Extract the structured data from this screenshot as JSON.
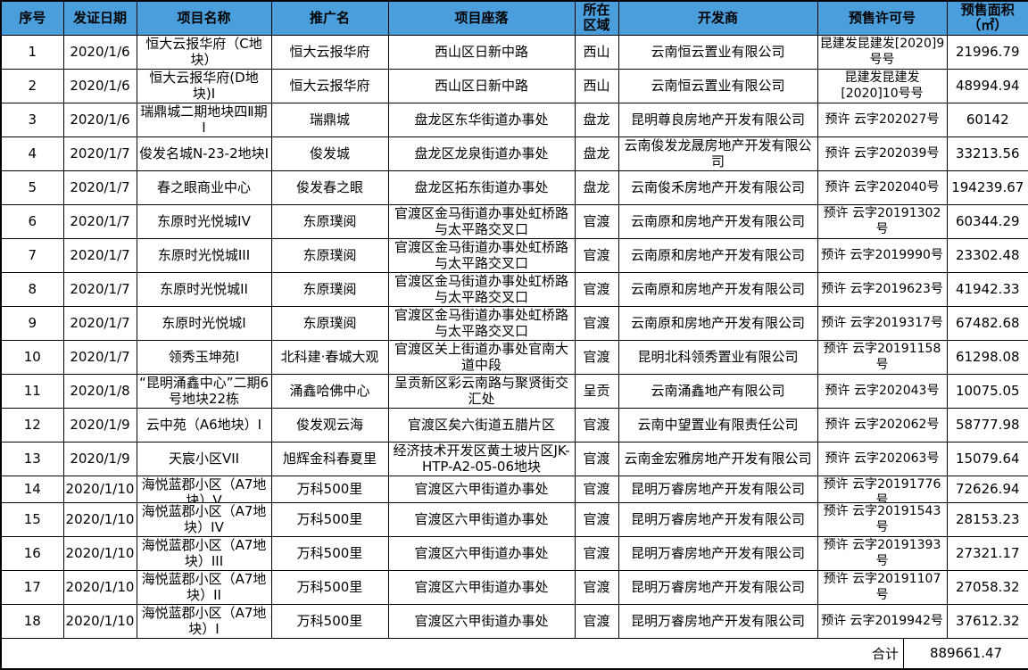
{
  "colors": {
    "header_bg": "#4A9EDB",
    "border": "#000000",
    "text": "#000000",
    "body_bg": "#FFFFFF"
  },
  "table": {
    "headers": [
      "序号",
      "发证日期",
      "项目名称",
      "推广名",
      "项目座落",
      "所在区域",
      "开发商",
      "预售许可号",
      "预售面积（㎡）"
    ],
    "rows": [
      [
        "1",
        "2020/1/6",
        "恒大云报华府（C地块）",
        "恒大云报华府",
        "西山区日新中路",
        "西山",
        "云南恒云置业有限公司",
        "昆建发昆建发[2020]9号号",
        "21996.79"
      ],
      [
        "2",
        "2020/1/6",
        "恒大云报华府(D地块)I",
        "恒大云报华府",
        "西山区日新中路",
        "西山",
        "云南恒云置业有限公司",
        "昆建发昆建发[2020]10号号",
        "48994.94"
      ],
      [
        "3",
        "2020/1/6",
        "瑞鼎城二期地块四Ⅱ期I",
        "瑞鼎城",
        "盘龙区东华街道办事处",
        "盘龙",
        "昆明尊良房地产开发有限公司",
        "预许 云字202027号",
        "60142"
      ],
      [
        "4",
        "2020/1/7",
        "俊发名城N-23-2地块I",
        "俊发城",
        "盘龙区龙泉街道办事处",
        "盘龙",
        "云南俊发龙晟房地产开发有限公司",
        "预许 云字202039号",
        "33213.56"
      ],
      [
        "5",
        "2020/1/7",
        "春之眼商业中心",
        "俊发春之眼",
        "盘龙区拓东街道办事处",
        "盘龙",
        "云南俊禾房地产开发有限公司",
        "预许 云字202040号",
        "194239.67"
      ],
      [
        "6",
        "2020/1/7",
        "东原时光悦城IV",
        "东原璞阅",
        "官渡区金马街道办事处虹桥路与太平路交叉口",
        "官渡",
        "云南原和房地产开发有限公司",
        "预许 云字20191302号",
        "60344.29"
      ],
      [
        "7",
        "2020/1/7",
        "东原时光悦城III",
        "东原璞阅",
        "官渡区金马街道办事处虹桥路与太平路交叉口",
        "官渡",
        "云南原和房地产开发有限公司",
        "预许 云字2019990号",
        "23302.48"
      ],
      [
        "8",
        "2020/1/7",
        "东原时光悦城II",
        "东原璞阅",
        "官渡区金马街道办事处虹桥路与太平路交叉口",
        "官渡",
        "云南原和房地产开发有限公司",
        "预许 云字2019623号",
        "41942.33"
      ],
      [
        "9",
        "2020/1/7",
        "东原时光悦城I",
        "东原璞阅",
        "官渡区金马街道办事处虹桥路与太平路交叉口",
        "官渡",
        "云南原和房地产开发有限公司",
        "预许 云字2019317号",
        "67482.68"
      ],
      [
        "10",
        "2020/1/7",
        "领秀玉坤苑I",
        "北科建·春城大观",
        "官渡区关上街道办事处官南大道中段",
        "官渡",
        "昆明北科领秀置业有限公司",
        "预许 云字20191158号",
        "61298.08"
      ],
      [
        "11",
        "2020/1/8",
        "“昆明涌鑫中心”二期6号地块22栋",
        "涌鑫哈佛中心",
        "呈贡新区彩云南路与聚贤街交汇处",
        "呈贡",
        "云南涌鑫地产有限公司",
        "预许 云字202043号",
        "10075.05"
      ],
      [
        "12",
        "2020/1/9",
        "云中苑（A6地块）I",
        "俊发观云海",
        "官渡区矣六街道五腊片区",
        "官渡",
        "云南中望置业有限责任公司",
        "预许 云字202062号",
        "58777.98"
      ],
      [
        "13",
        "2020/1/9",
        "天宸小区VII",
        "旭辉金科春夏里",
        "经济技术开发区黄土坡片区JK-HTP-A2-05-06地块",
        "官渡",
        "云南金宏雅房地产开发有限公司",
        "预许 云字202063号",
        "15079.64"
      ],
      [
        "14",
        "2020/1/10",
        "海悦蓝郡小区（A7地块）V",
        "万科500里",
        "官渡区六甲街道办事处",
        "官渡",
        "昆明万睿房地产开发有限公司",
        "预许 云字20191776号",
        "72626.94"
      ],
      [
        "15",
        "2020/1/10",
        "海悦蓝郡小区（A7地块）IV",
        "万科500里",
        "官渡区六甲街道办事处",
        "官渡",
        "昆明万睿房地产开发有限公司",
        "预许 云字20191543号",
        "28153.23"
      ],
      [
        "16",
        "2020/1/10",
        "海悦蓝郡小区（A7地块）III",
        "万科500里",
        "官渡区六甲街道办事处",
        "官渡",
        "昆明万睿房地产开发有限公司",
        "预许 云字20191393号",
        "27321.17"
      ],
      [
        "17",
        "2020/1/10",
        "海悦蓝郡小区（A7地块）II",
        "万科500里",
        "官渡区六甲街道办事处",
        "官渡",
        "昆明万睿房地产开发有限公司",
        "预许 云字20191107号",
        "27058.32"
      ],
      [
        "18",
        "2020/1/10",
        "海悦蓝郡小区（A7地块）I",
        "万科500里",
        "官渡区六甲街道办事处",
        "官渡",
        "昆明万睿房地产开发有限公司",
        "预许 云字2019942号",
        "37612.32"
      ]
    ],
    "footer": {
      "label": "合计",
      "total": "889661.47"
    }
  }
}
